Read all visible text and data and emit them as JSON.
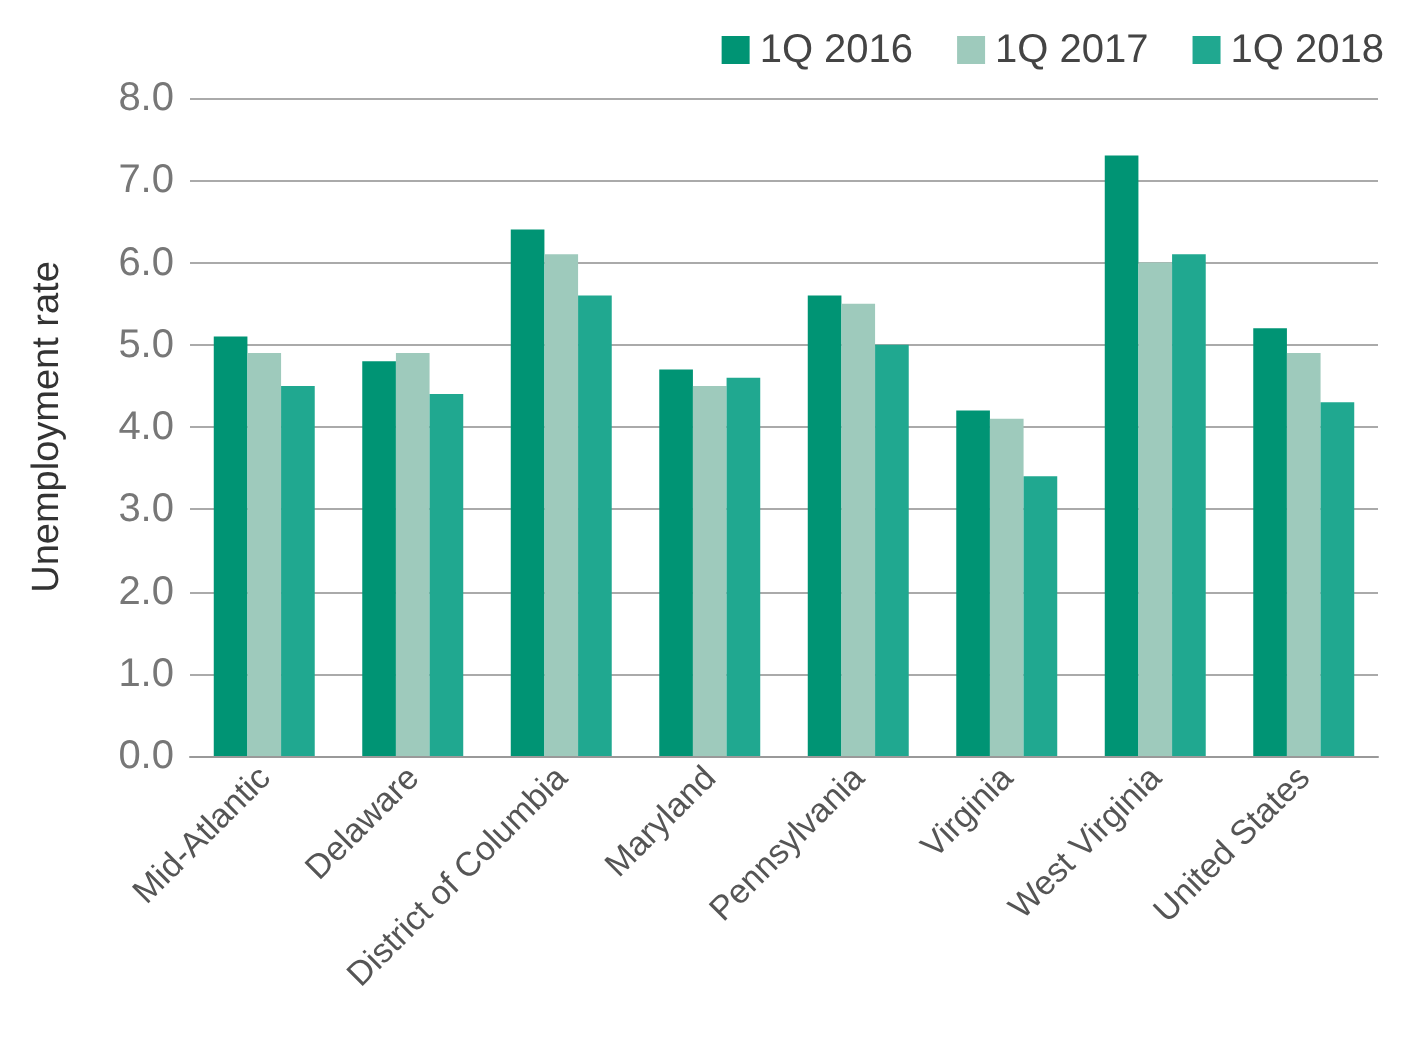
{
  "chart_data": {
    "type": "bar",
    "ylabel": "Unemployment rate",
    "categories": [
      "Mid-Atlantic",
      "Delaware",
      "District of Columbia",
      "Maryland",
      "Pennsylvania",
      "Virginia",
      "West Virginia",
      "United States"
    ],
    "series": [
      {
        "name": "1Q 2016",
        "color": "#009474",
        "values": [
          5.1,
          4.8,
          6.4,
          4.7,
          5.6,
          4.2,
          7.3,
          5.2
        ]
      },
      {
        "name": "1Q 2017",
        "color": "#9ecabc",
        "values": [
          4.9,
          4.9,
          6.1,
          4.5,
          5.5,
          4.1,
          6.0,
          4.9
        ]
      },
      {
        "name": "1Q 2018",
        "color": "#20a890",
        "values": [
          4.5,
          4.4,
          5.6,
          4.6,
          5.0,
          3.4,
          6.1,
          4.3
        ]
      }
    ],
    "ylim": [
      0,
      8
    ],
    "yticks": [
      {
        "value": 0,
        "label": "0.0"
      },
      {
        "value": 1,
        "label": "1.0"
      },
      {
        "value": 2,
        "label": "2.0"
      },
      {
        "value": 3,
        "label": "3.0"
      },
      {
        "value": 4,
        "label": "4.0"
      },
      {
        "value": 5,
        "label": "5.0"
      },
      {
        "value": 6,
        "label": "6.0"
      },
      {
        "value": 7,
        "label": "7.0"
      },
      {
        "value": 8,
        "label": "8.0"
      }
    ],
    "grid": "y",
    "legend": "top right"
  }
}
